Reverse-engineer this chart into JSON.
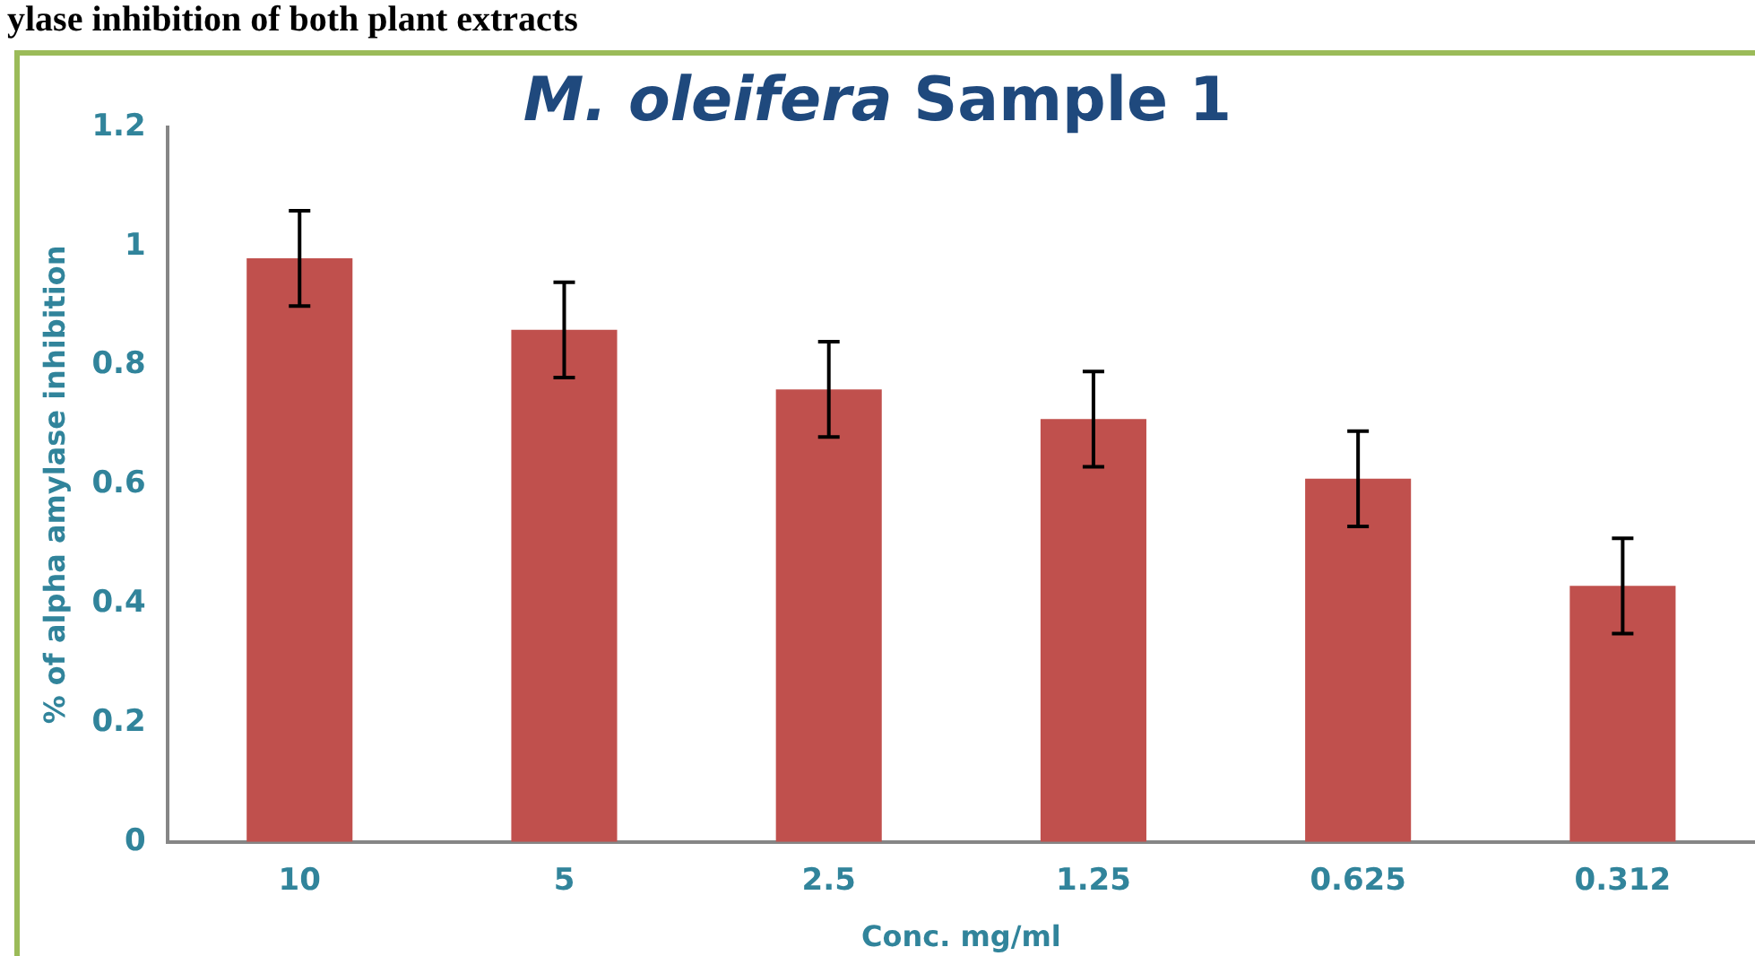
{
  "chart_data": {
    "type": "bar",
    "title": "M. oleifera Sample 1",
    "xlabel": "Conc. mg/ml",
    "ylabel": "% of alpha amylase inhibition",
    "annotations": [
      "ylase inhibition of both plant extracts"
    ],
    "categories": [
      "10",
      "5",
      "2.5",
      "1.25",
      "0.625",
      "0.312"
    ],
    "values": [
      0.98,
      0.86,
      0.76,
      0.71,
      0.61,
      0.43
    ],
    "errors": [
      0.08,
      0.08,
      0.08,
      0.08,
      0.08,
      0.08
    ],
    "color": "#c0504d",
    "ylim": [
      0,
      1.2
    ],
    "yticks": [
      0,
      0.2,
      0.4,
      0.6,
      0.8,
      1,
      1.2
    ],
    "grid": false,
    "legend": false
  }
}
